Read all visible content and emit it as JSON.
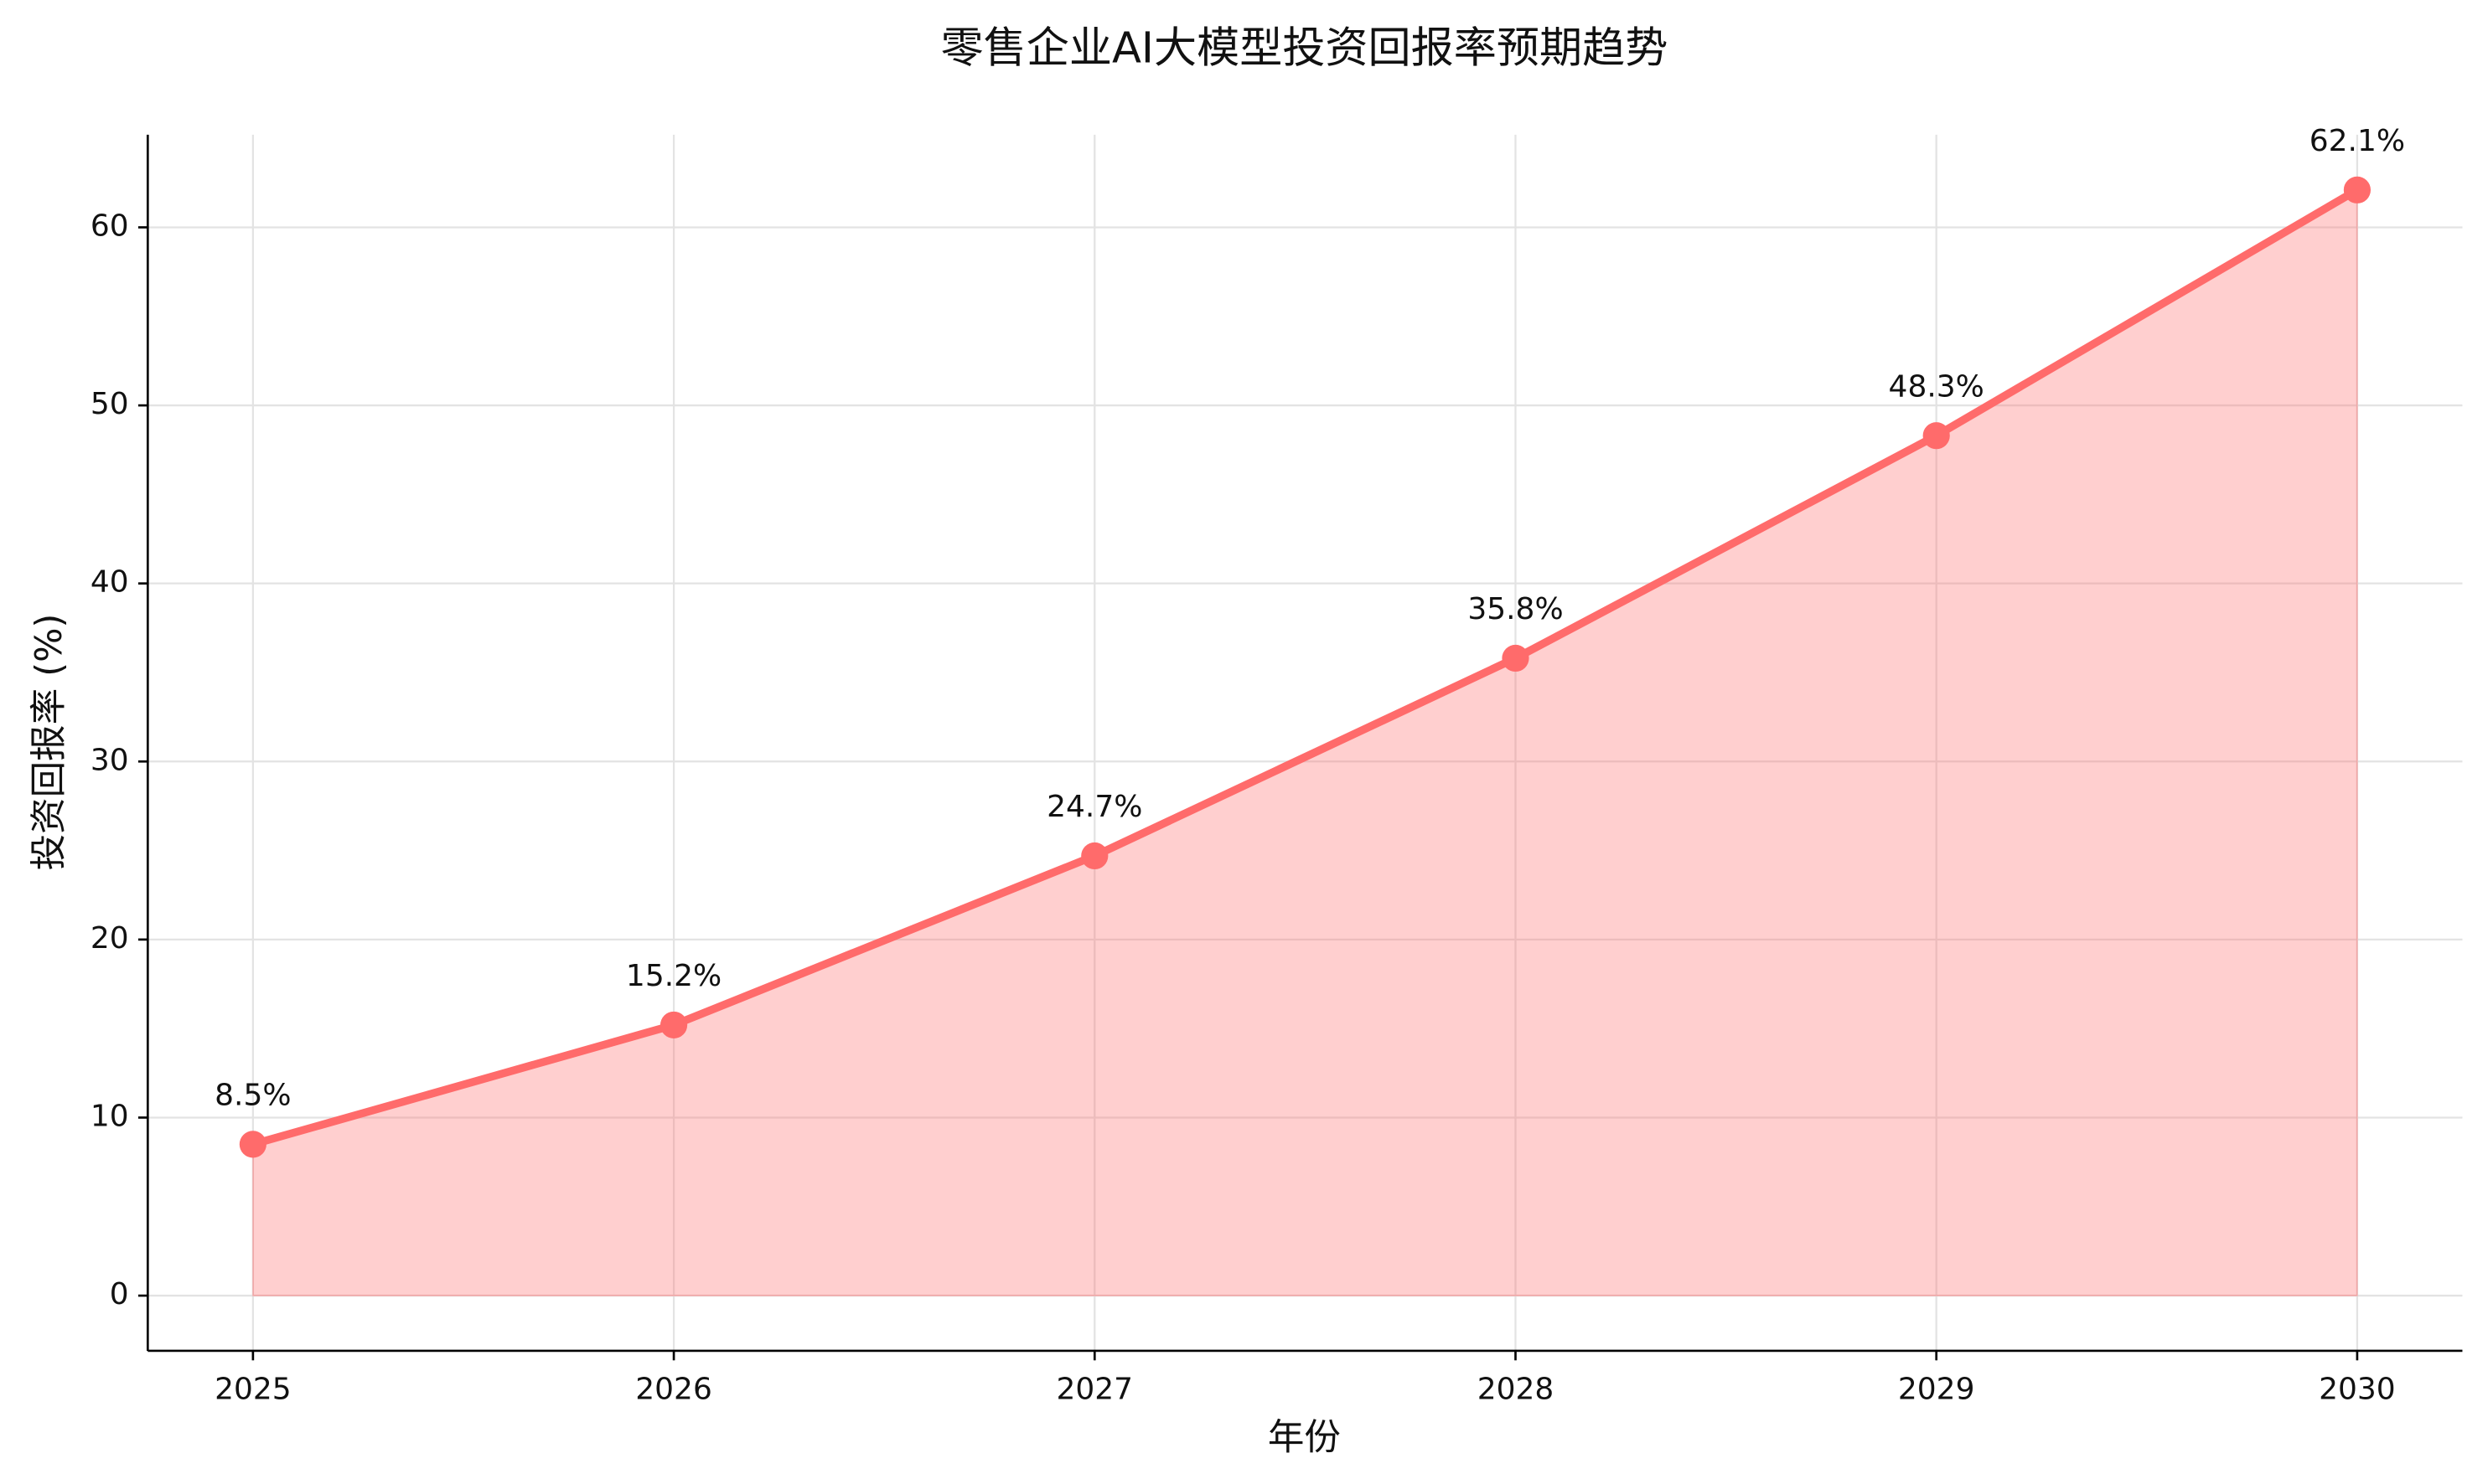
{
  "chart_data": {
    "type": "line",
    "title": "零售企业AI大模型投资回报率预期趋势",
    "x_label": "年份",
    "y_label": "投资回报率 (%)",
    "x": [
      2025,
      2026,
      2027,
      2028,
      2029,
      2030
    ],
    "values": [
      8.5,
      15.2,
      24.7,
      35.8,
      48.3,
      62.1
    ],
    "value_labels": [
      "8.5%",
      "15.2%",
      "24.7%",
      "35.8%",
      "48.3%",
      "62.1%"
    ],
    "color": "#ff6b6b",
    "fill_area": true,
    "xlim": [
      2024.75,
      2030.25
    ],
    "xticks": [
      2025,
      2026,
      2027,
      2028,
      2029,
      2030
    ],
    "ylim": [
      -3.1,
      65.2
    ],
    "yticks": [
      0,
      10,
      20,
      30,
      40,
      50,
      60
    ],
    "grid": true
  }
}
